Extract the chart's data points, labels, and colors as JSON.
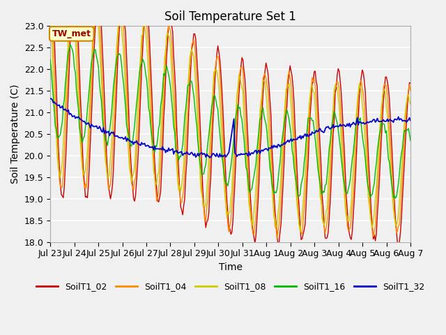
{
  "title": "Soil Temperature Set 1",
  "xlabel": "Time",
  "ylabel": "Soil Temperature (C)",
  "ylim": [
    18.0,
    23.0
  ],
  "yticks": [
    18.0,
    18.5,
    19.0,
    19.5,
    20.0,
    20.5,
    21.0,
    21.5,
    22.0,
    22.5,
    23.0
  ],
  "fig_bg_color": "#f0f0f0",
  "plot_bg_color": "#f0f0f0",
  "grid_color": "white",
  "line_colors": {
    "SoilT1_02": "#cc0000",
    "SoilT1_04": "#ff8c00",
    "SoilT1_08": "#cccc00",
    "SoilT1_16": "#00bb00",
    "SoilT1_32": "#0000cc"
  },
  "legend_label": "TW_met",
  "legend_bg": "#ffffcc",
  "legend_border": "#cc8800",
  "n_points": 360,
  "title_fontsize": 12,
  "axis_fontsize": 10,
  "tick_fontsize": 9
}
